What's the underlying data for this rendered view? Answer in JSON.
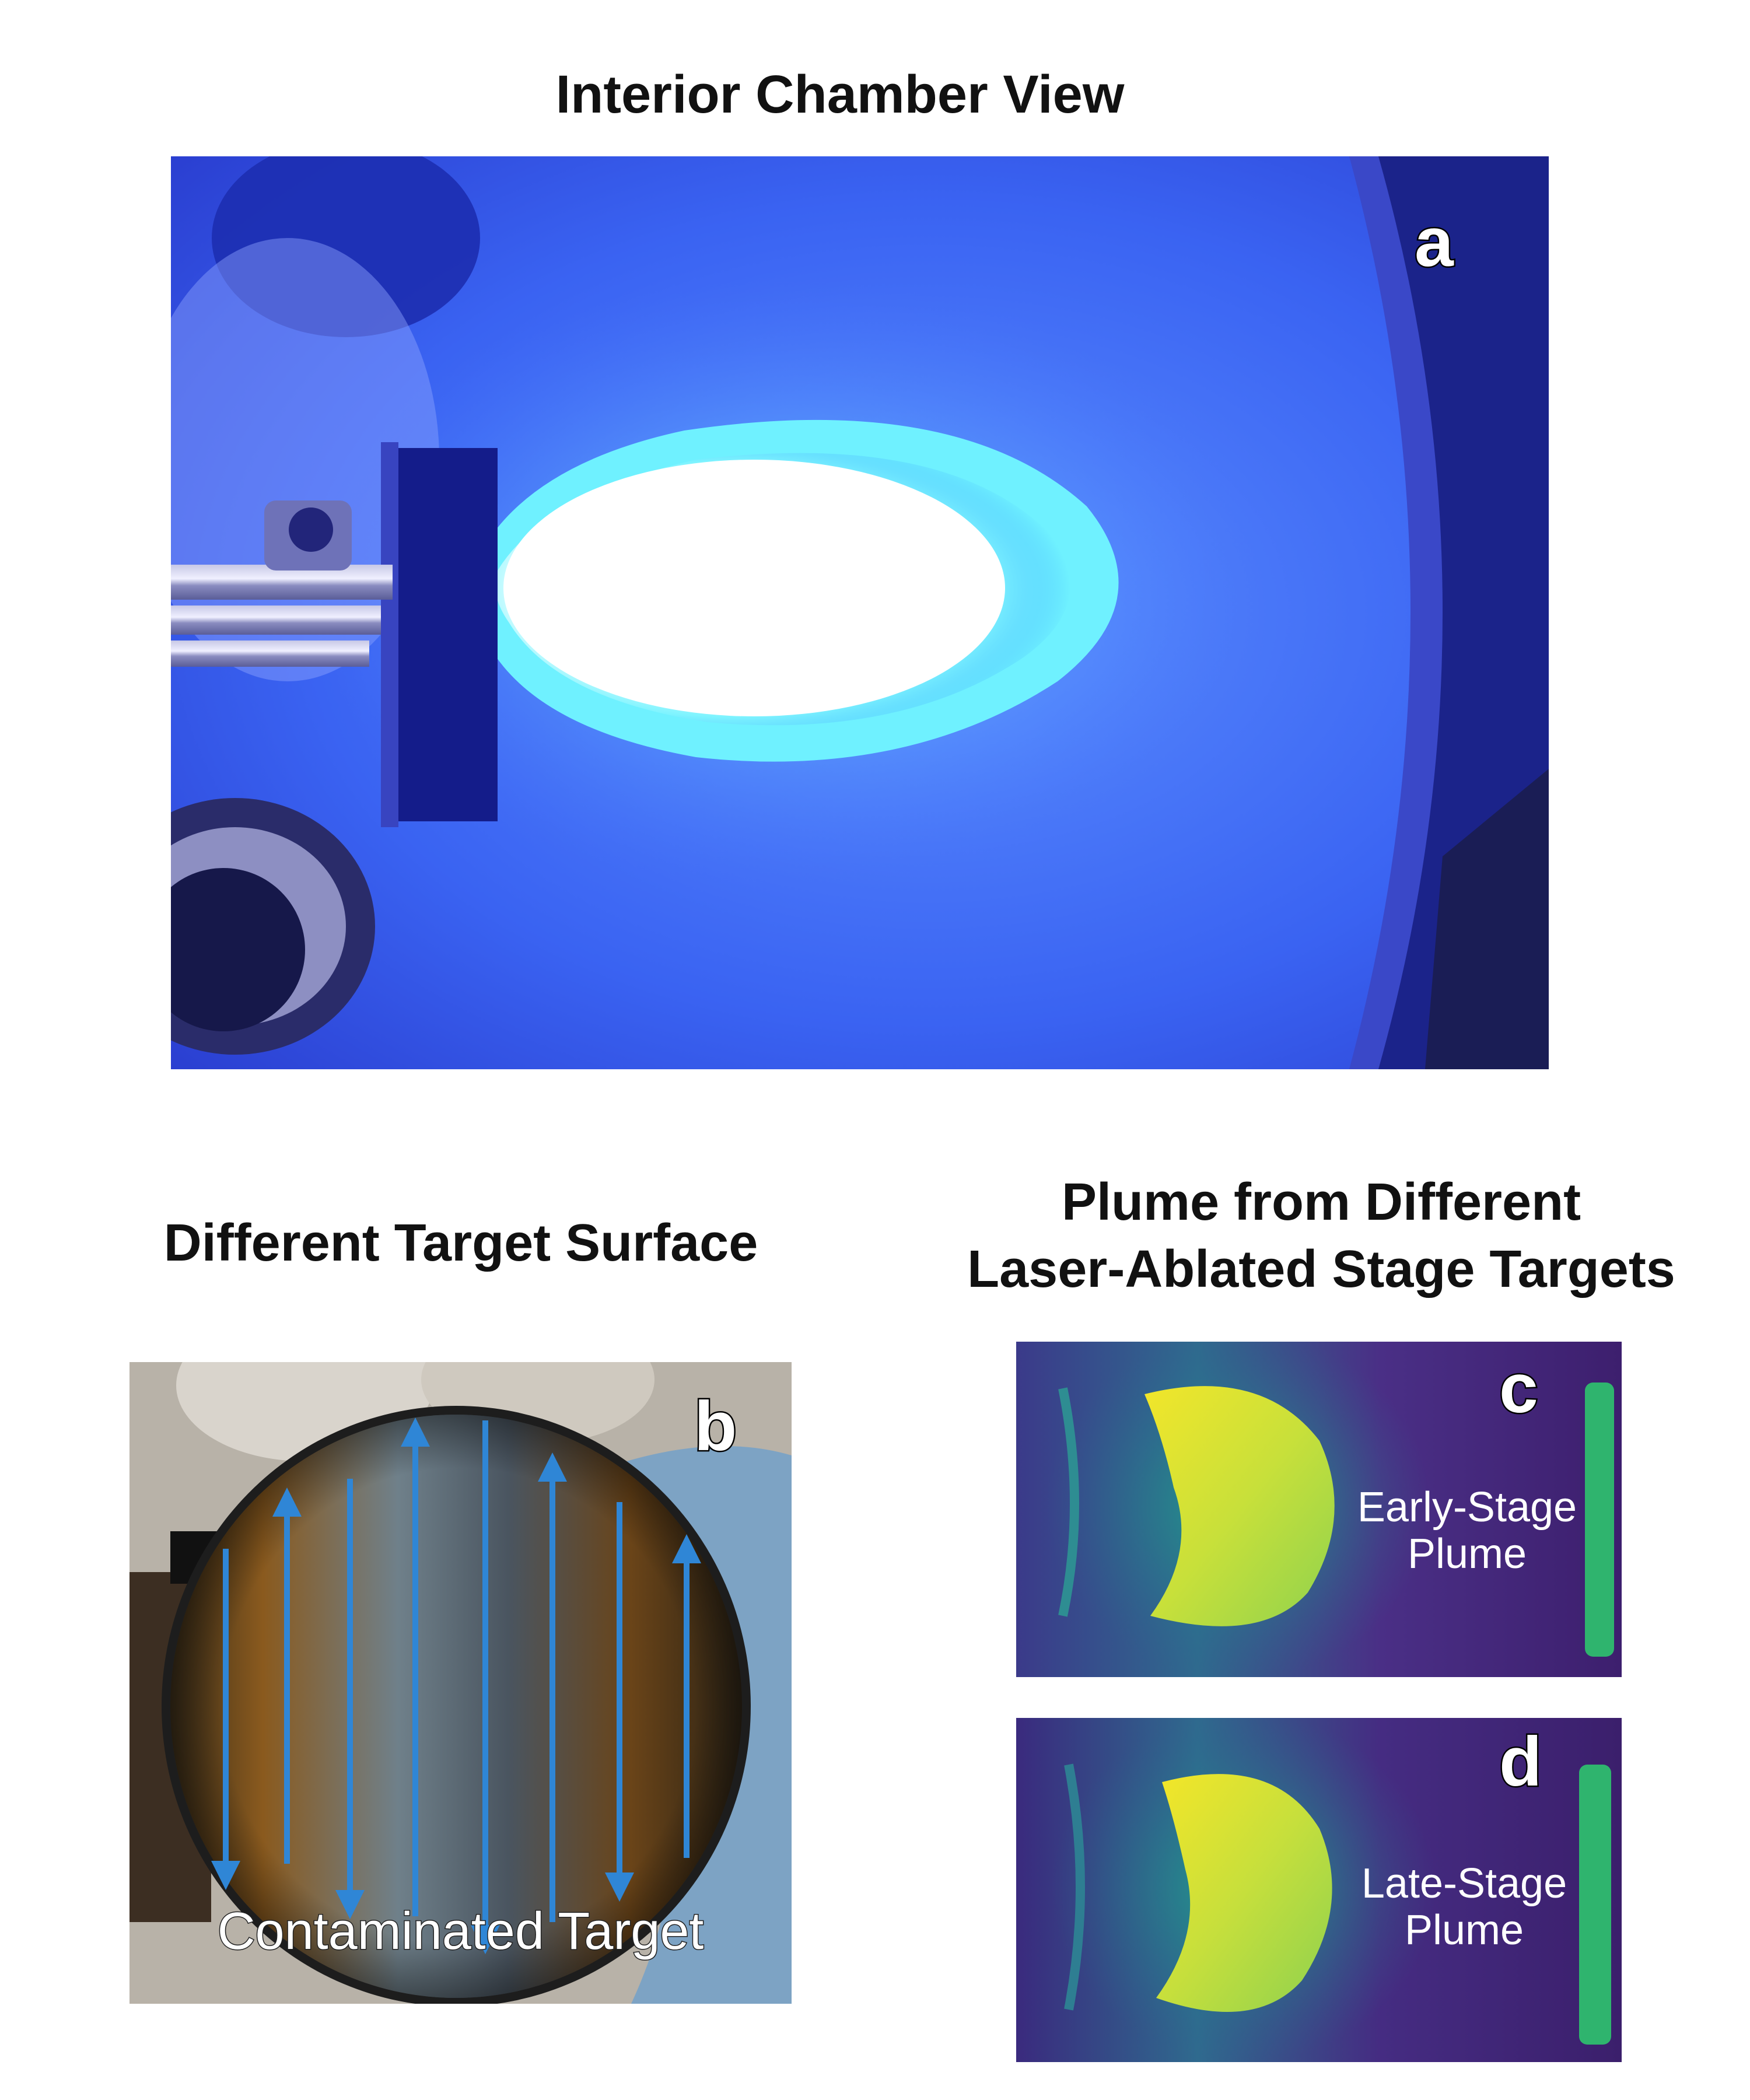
{
  "panel_a": {
    "title": "Interior Chamber View",
    "letter": "a"
  },
  "panel_b": {
    "title": "Different Target Surface",
    "letter": "b",
    "caption": "Contaminated Target"
  },
  "panel_cd": {
    "title_line1": "Plume from Different",
    "title_line2": "Laser-Ablated Stage Targets"
  },
  "panel_c": {
    "letter": "c",
    "label_line1": "Early-Stage",
    "label_line2": "Plume"
  },
  "panel_d": {
    "letter": "d",
    "label_line1": "Late-Stage",
    "label_line2": "Plume"
  }
}
